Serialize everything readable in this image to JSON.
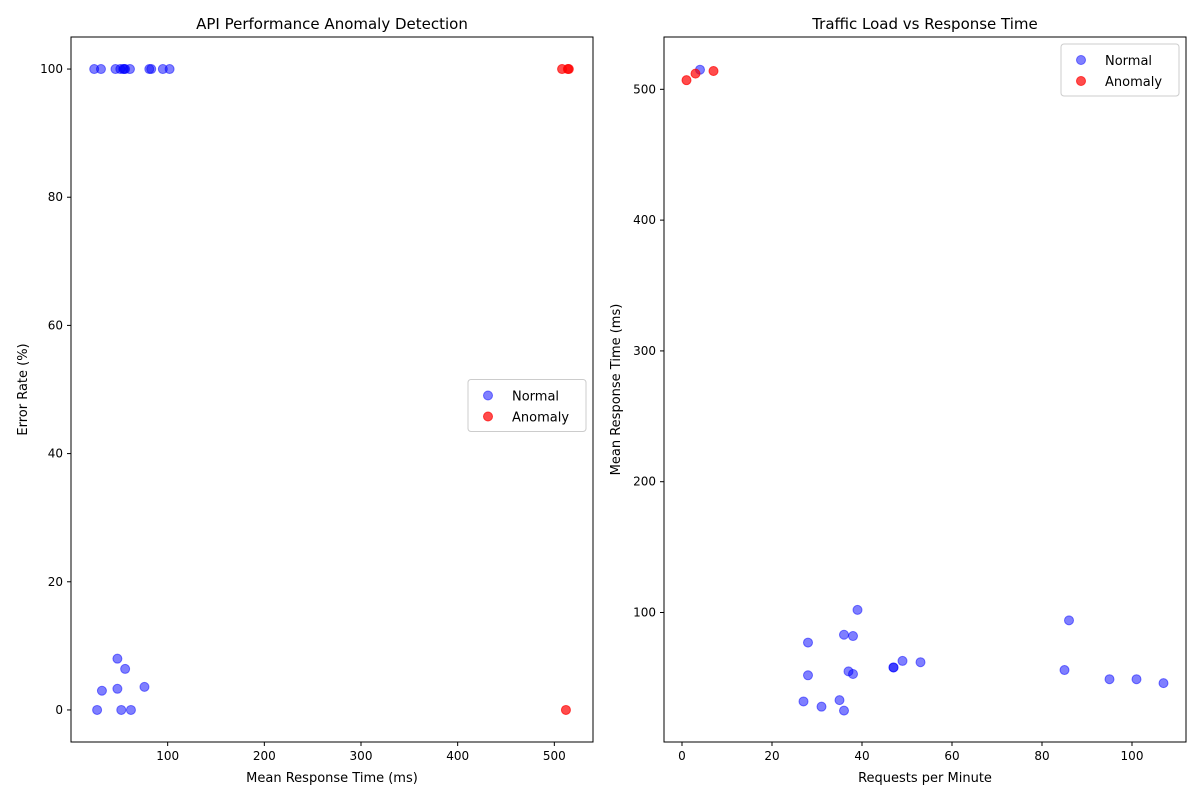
{
  "chart_data": [
    {
      "type": "scatter",
      "title": "API Performance Anomaly Detection",
      "xlabel": "Mean Response Time (ms)",
      "ylabel": "Error Rate (%)",
      "xlim": [
        0,
        540
      ],
      "ylim": [
        -5,
        105
      ],
      "xticks": [
        100,
        200,
        300,
        400,
        500
      ],
      "yticks": [
        0,
        20,
        40,
        60,
        80,
        100
      ],
      "legend_position": "center-right",
      "series": [
        {
          "name": "Normal",
          "color": "#0000ff",
          "points": [
            [
              24,
              100
            ],
            [
              31,
              100
            ],
            [
              46,
              100
            ],
            [
              51,
              100
            ],
            [
              54,
              100
            ],
            [
              55,
              100
            ],
            [
              56,
              100
            ],
            [
              61,
              100
            ],
            [
              81,
              100
            ],
            [
              83,
              100
            ],
            [
              95,
              100
            ],
            [
              102,
              100
            ],
            [
              27,
              0
            ],
            [
              32,
              3
            ],
            [
              48,
              3.3
            ],
            [
              48,
              8
            ],
            [
              52,
              0
            ],
            [
              56,
              6.4
            ],
            [
              62,
              0
            ],
            [
              76,
              3.6
            ]
          ]
        },
        {
          "name": "Anomaly",
          "color": "#ff0000",
          "points": [
            [
              508,
              100
            ],
            [
              514,
              100
            ],
            [
              515,
              100
            ],
            [
              512,
              0
            ]
          ]
        }
      ]
    },
    {
      "type": "scatter",
      "title": "Traffic Load vs Response Time",
      "xlabel": "Requests per Minute",
      "ylabel": "Mean Response Time (ms)",
      "xlim": [
        -4,
        112
      ],
      "ylim": [
        1,
        540
      ],
      "xticks": [
        0,
        20,
        40,
        60,
        80,
        100
      ],
      "yticks": [
        100,
        200,
        300,
        400,
        500
      ],
      "legend_position": "top-right",
      "series": [
        {
          "name": "Normal",
          "color": "#0000ff",
          "points": [
            [
              4,
              515
            ],
            [
              39,
              102
            ],
            [
              86,
              94
            ],
            [
              28,
              77
            ],
            [
              36,
              83
            ],
            [
              38,
              82
            ],
            [
              47,
              58
            ],
            [
              47,
              58
            ],
            [
              49,
              63
            ],
            [
              53,
              62
            ],
            [
              28,
              52
            ],
            [
              37,
              55
            ],
            [
              38,
              53
            ],
            [
              85,
              56
            ],
            [
              95,
              49
            ],
            [
              101,
              49
            ],
            [
              107,
              46
            ],
            [
              27,
              32
            ],
            [
              31,
              28
            ],
            [
              35,
              33
            ],
            [
              36,
              25
            ]
          ]
        },
        {
          "name": "Anomaly",
          "color": "#ff0000",
          "points": [
            [
              1,
              507
            ],
            [
              3,
              512
            ],
            [
              7,
              514
            ]
          ]
        }
      ]
    }
  ]
}
